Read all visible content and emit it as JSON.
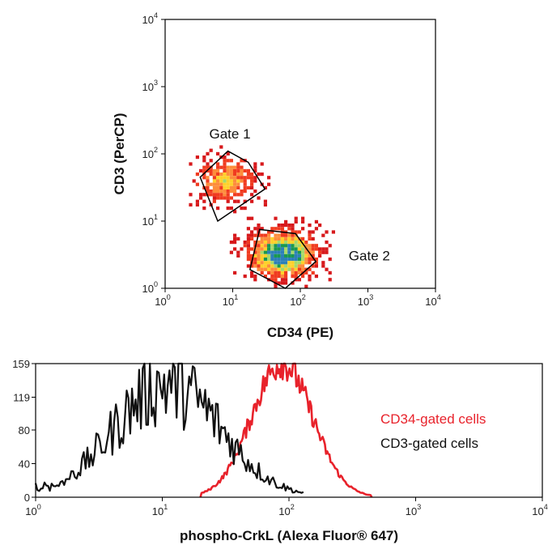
{
  "chart_data": [
    {
      "type": "scatter",
      "subtype": "density_plot",
      "xlabel": "CD34 (PE)",
      "ylabel": "CD3 (PerCP)",
      "xscale": "log",
      "yscale": "log",
      "xlim": [
        1,
        10000
      ],
      "ylim": [
        1,
        10000
      ],
      "x_ticks": [
        {
          "value": 1,
          "base": "10",
          "exp": "0"
        },
        {
          "value": 10,
          "base": "10",
          "exp": "1"
        },
        {
          "value": 100,
          "base": "10",
          "exp": "2"
        },
        {
          "value": 1000,
          "base": "10",
          "exp": "3"
        },
        {
          "value": 10000,
          "base": "10",
          "exp": "4"
        }
      ],
      "y_ticks": [
        {
          "value": 1,
          "base": "10",
          "exp": "0"
        },
        {
          "value": 10,
          "base": "10",
          "exp": "1"
        },
        {
          "value": 100,
          "base": "10",
          "exp": "2"
        },
        {
          "value": 1000,
          "base": "10",
          "exp": "3"
        },
        {
          "value": 10000,
          "base": "10",
          "exp": "4"
        }
      ],
      "colormap": [
        "#d7191c",
        "#f03b20",
        "#fd8d3c",
        "#fed12b",
        "#a6d96a",
        "#1a9850",
        "#2c7fb8"
      ],
      "populations": [
        {
          "center": [
            8,
            40
          ],
          "spread_log": [
            0.3,
            0.22
          ],
          "relative_density": 0.55
        },
        {
          "center": [
            55,
            3.2
          ],
          "spread_log": [
            0.32,
            0.22
          ],
          "relative_density": 1.0
        }
      ],
      "gates": [
        {
          "label": "Gate 1",
          "label_pos": [
            4.5,
            170
          ],
          "polygon": [
            [
              3.3,
              45
            ],
            [
              8.5,
              110
            ],
            [
              17,
              75
            ],
            [
              30,
              30
            ],
            [
              6,
              10
            ]
          ]
        },
        {
          "label": "Gate 2",
          "label_pos": [
            520,
            2.6
          ],
          "polygon": [
            [
              25,
              7.5
            ],
            [
              85,
              6.5
            ],
            [
              170,
              2.5
            ],
            [
              60,
              1.0
            ],
            [
              18,
              1.9
            ]
          ]
        }
      ]
    },
    {
      "type": "line",
      "subtype": "histogram_overlay",
      "xlabel": "phospho-CrkL (Alexa Fluor® 647)",
      "ylabel": "",
      "xscale": "log",
      "xlim": [
        1,
        10000
      ],
      "ylim": [
        0,
        159
      ],
      "y_ticks": [
        "0",
        "40",
        "80",
        "119",
        "159"
      ],
      "x_ticks": [
        {
          "value": 1,
          "base": "10",
          "exp": "0"
        },
        {
          "value": 10,
          "base": "10",
          "exp": "1"
        },
        {
          "value": 100,
          "base": "10",
          "exp": "2"
        },
        {
          "value": 1000,
          "base": "10",
          "exp": "3"
        },
        {
          "value": 10000,
          "base": "10",
          "exp": "4"
        }
      ],
      "legend_position": "right",
      "series": [
        {
          "name": "CD34-gated cells",
          "color": "#e8222b",
          "x_range": [
            20,
            450
          ],
          "peak_x": 88,
          "peak_y": 159,
          "sigma_log": 0.24
        },
        {
          "name": "CD3-gated cells",
          "color": "#111111",
          "x_range": [
            1,
            130
          ],
          "peak_x": 11,
          "peak_y": 135,
          "sigma_log": 0.42
        }
      ]
    }
  ]
}
